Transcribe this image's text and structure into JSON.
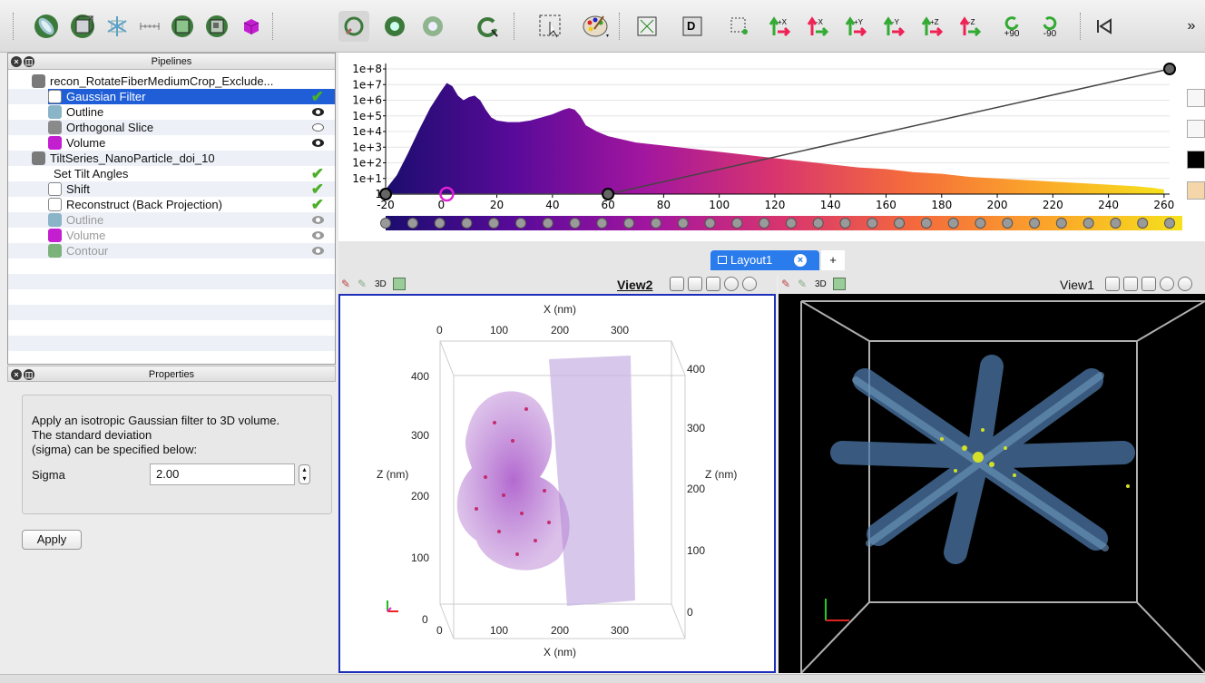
{
  "toolbar": {
    "items": [
      {
        "name": "open-data-icon"
      },
      {
        "name": "outline-filter-icon"
      },
      {
        "name": "slice-icon"
      },
      {
        "name": "ruler-icon"
      },
      {
        "name": "threshold-icon"
      },
      {
        "name": "clip-icon"
      },
      {
        "name": "volume-icon"
      },
      {
        "name": "interact-icon"
      },
      {
        "name": "reset-camera-icon"
      },
      {
        "name": "reset-camera-alt-icon"
      },
      {
        "name": "rotate-icon"
      },
      {
        "name": "select-icon"
      },
      {
        "name": "color-palette-icon"
      },
      {
        "name": "view-axes-icon"
      },
      {
        "name": "data-axes-icon"
      },
      {
        "name": "zoom-box-icon"
      },
      {
        "name": "view-plus-x-icon"
      },
      {
        "name": "view-minus-x-icon"
      },
      {
        "name": "view-plus-y-icon"
      },
      {
        "name": "view-minus-y-icon"
      },
      {
        "name": "view-plus-z-icon"
      },
      {
        "name": "view-minus-z-icon"
      },
      {
        "name": "rotate-plus90-icon"
      },
      {
        "name": "rotate-minus90-icon"
      },
      {
        "name": "first-frame-icon"
      }
    ],
    "rotate_plus_label": "+90",
    "rotate_minus_label": "-90",
    "overflow_label": "»"
  },
  "pipelines": {
    "title": "Pipelines",
    "items": [
      {
        "label": "recon_RotateFiberMediumCrop_Exclude...",
        "indent": 1,
        "icon": "dataset-icon",
        "status": ""
      },
      {
        "label": "Gaussian Filter",
        "indent": 2,
        "icon": "filter-icon",
        "status": "check",
        "selected": true
      },
      {
        "label": "Outline",
        "indent": 2,
        "icon": "outline-icon",
        "status": "eye"
      },
      {
        "label": "Orthogonal Slice",
        "indent": 2,
        "icon": "slice-icon",
        "status": "eye-off"
      },
      {
        "label": "Volume",
        "indent": 2,
        "icon": "volume-icon",
        "status": "eye"
      },
      {
        "label": "TiltSeries_NanoParticle_doi_10",
        "indent": 1,
        "icon": "dataset-icon",
        "status": ""
      },
      {
        "label": "Set Tilt Angles",
        "indent": 2,
        "icon": "",
        "status": "check"
      },
      {
        "label": "Shift",
        "indent": 2,
        "icon": "filter-icon",
        "status": "check"
      },
      {
        "label": "Reconstruct (Back Projection)",
        "indent": 2,
        "icon": "filter-icon",
        "status": "check"
      },
      {
        "label": "Outline",
        "indent": 2,
        "icon": "outline-icon",
        "status": "eye-gray",
        "disabled": true
      },
      {
        "label": "Volume",
        "indent": 2,
        "icon": "volume-icon",
        "status": "eye-gray",
        "disabled": true
      },
      {
        "label": "Contour",
        "indent": 2,
        "icon": "contour-icon",
        "status": "eye-gray",
        "disabled": true
      }
    ]
  },
  "properties": {
    "title": "Properties",
    "description": "Apply an isotropic Gaussian filter to 3D volume.\nThe standard deviation\n(sigma) can be specified below:",
    "sigma_label": "Sigma",
    "sigma_value": "2.00",
    "apply_label": "Apply"
  },
  "chart_data": {
    "type": "area",
    "yscale": "log",
    "y_tick_labels": [
      "1",
      "1e+1",
      "1e+2",
      "1e+3",
      "1e+4",
      "1e+5",
      "1e+6",
      "1e+7",
      "1e+8"
    ],
    "x_ticks": [
      -20,
      0,
      20,
      40,
      60,
      80,
      100,
      120,
      140,
      160,
      180,
      200,
      220,
      240,
      260
    ],
    "xlim": [
      -20,
      262
    ],
    "ylim_exp": [
      0,
      8
    ],
    "colormap": [
      "#1b0d6e",
      "#5a0a9a",
      "#a3169f",
      "#d8356e",
      "#f46a3c",
      "#fba52a",
      "#f6e11c"
    ],
    "histogram_x": [
      -20,
      -16,
      -12,
      -8,
      -4,
      0,
      2,
      4,
      6,
      8,
      10,
      12,
      14,
      16,
      18,
      20,
      24,
      28,
      32,
      36,
      40,
      44,
      46,
      48,
      50,
      52,
      56,
      60,
      70,
      80,
      90,
      100,
      110,
      120,
      130,
      140,
      150,
      160,
      170,
      180,
      190,
      200,
      210,
      220,
      230,
      240,
      250,
      256,
      260
    ],
    "histogram_log10": [
      0.3,
      1.2,
      2.6,
      4.1,
      5.5,
      6.6,
      7.1,
      6.9,
      6.3,
      6.0,
      6.2,
      6.3,
      6.0,
      5.4,
      4.9,
      4.7,
      4.6,
      4.6,
      4.7,
      4.9,
      5.1,
      5.4,
      5.5,
      5.4,
      5.0,
      4.4,
      4.0,
      3.7,
      3.3,
      3.1,
      2.9,
      2.7,
      2.5,
      2.3,
      2.1,
      1.9,
      1.7,
      1.6,
      1.4,
      1.3,
      1.1,
      1.0,
      0.9,
      0.8,
      0.7,
      0.6,
      0.5,
      0.4,
      0.3
    ],
    "opacity_points": [
      {
        "x": -20,
        "y": 0
      },
      {
        "x": 60,
        "y": 0
      },
      {
        "x": 262,
        "y": 1
      }
    ],
    "marker_x": 2
  },
  "layout_tab": {
    "label": "Layout1",
    "add_label": "+"
  },
  "view2": {
    "title": "View2",
    "three_d_label": "3D",
    "x_axis_label": "X (nm)",
    "z_axis_label": "Z (nm)",
    "x_ticks": [
      "0",
      "100",
      "200",
      "300"
    ],
    "z_ticks": [
      "0",
      "100",
      "200",
      "300",
      "400"
    ]
  },
  "view1": {
    "title": "View1",
    "three_d_label": "3D"
  },
  "colors": {
    "selection": "#1f5ed6",
    "accent_border": "#1d2fb7"
  }
}
